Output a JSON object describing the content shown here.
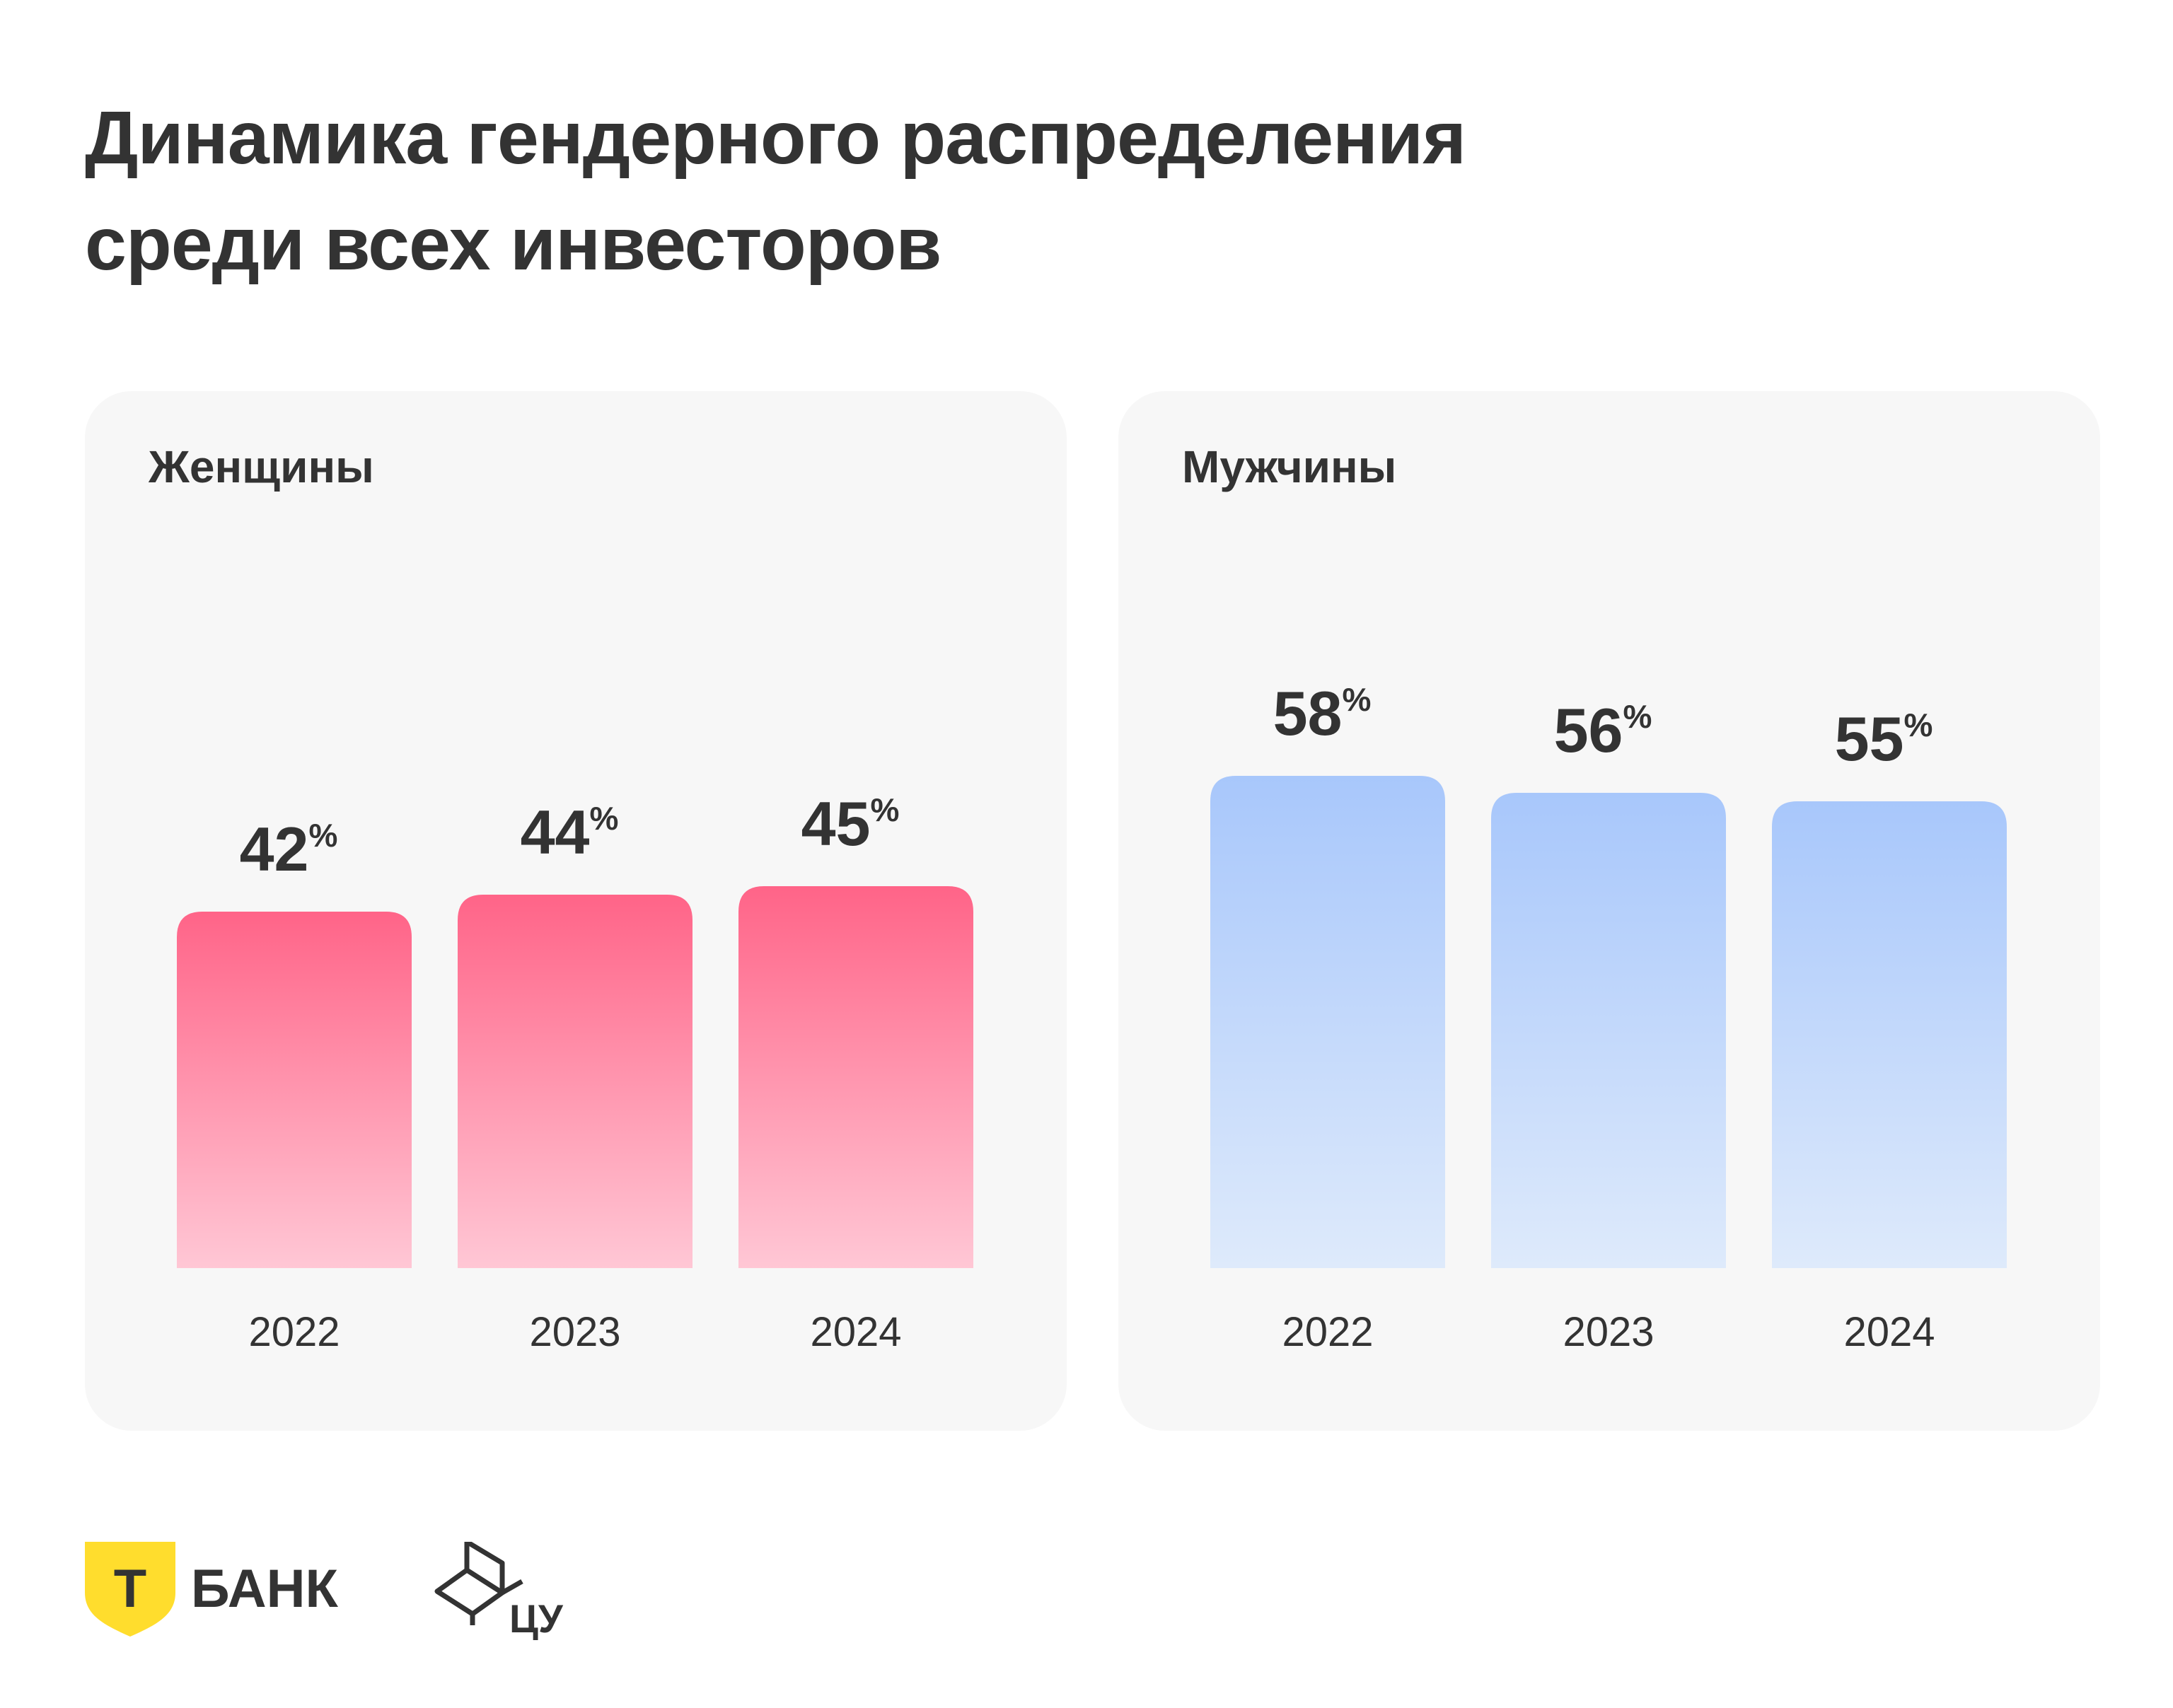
{
  "title": {
    "line1": "Динамика гендерного распределения",
    "line2": "среди всех инвесторов"
  },
  "chart_data": [
    {
      "type": "bar",
      "title": "Женщины",
      "categories": [
        "2022",
        "2023",
        "2024"
      ],
      "values": [
        42,
        44,
        45
      ],
      "unit": "%",
      "color_top": "#ff6488",
      "color_bottom": "#ffc7d5"
    },
    {
      "type": "bar",
      "title": "Мужчины",
      "categories": [
        "2022",
        "2023",
        "2024"
      ],
      "values": [
        58,
        56,
        55
      ],
      "unit": "%",
      "color_top": "#a8c7fb",
      "color_bottom": "#deeafb"
    }
  ],
  "footer": {
    "bank_logo_text": "БАНК",
    "bank_badge_letter": "Т",
    "bank_badge_color": "#ffdd2d",
    "cu_logo_text": "ЦУ"
  }
}
